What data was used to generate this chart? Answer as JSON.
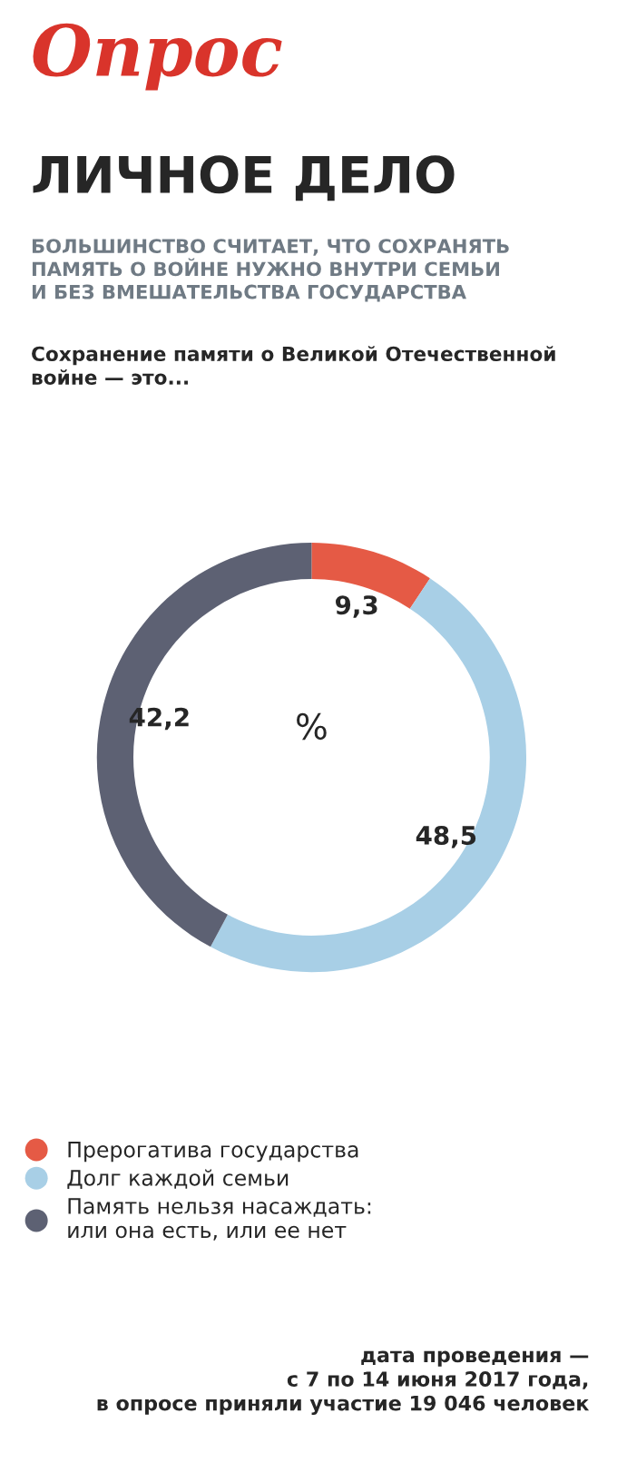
{
  "chart_data": {
    "type": "donut",
    "title": "ЛИЧНОЕ ДЕЛО",
    "subtitle": "БОЛЬШИНСТВО СЧИТАЕТ, ЧТО СОХРАНЯТЬ\nПАМЯТЬ О ВОЙНЕ НУЖНО ВНУТРИ СЕМЬИ\nИ БЕЗ ВМЕШАТЕЛЬСТВА ГОСУДАРСТВА",
    "annotations": [
      "Опрос",
      "Сохранение памяти о Великой Отечественной\nвойне — это...",
      "%",
      "дата проведения —\nс 7 по 14 июня 2017 года,\nв опросе приняли участие 19 046 человек"
    ],
    "categories": [
      "Прерогатива государства",
      "Долг каждой семьи",
      "Память нельзя насаждать:\nили она есть, или ее нет"
    ],
    "values": [
      9.3,
      48.5,
      42.2
    ],
    "value_labels": [
      "9,3",
      "48,5",
      "42,2"
    ],
    "colors": [
      "#e55a45",
      "#a8cfe6",
      "#5d6173"
    ],
    "legend": "bottom"
  }
}
